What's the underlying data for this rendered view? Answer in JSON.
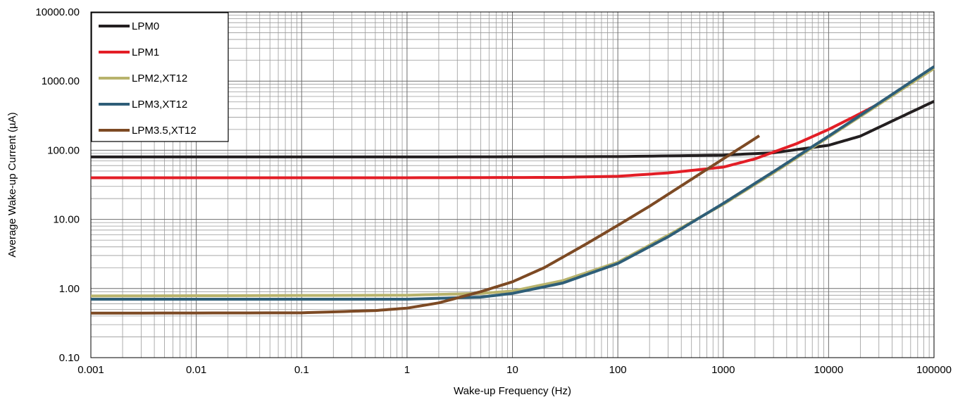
{
  "chart_data": {
    "type": "line",
    "title": "",
    "xlabel": "Wake-up Frequency (Hz)",
    "ylabel": "Average Wake-up Current (µA)",
    "xscale": "log",
    "yscale": "log",
    "xlim": [
      0.001,
      100000
    ],
    "ylim": [
      0.1,
      10000
    ],
    "grid": true,
    "legend_position": "top-left",
    "x_tick_labels": [
      "0.001",
      "0.01",
      "0.1",
      "1",
      "10",
      "100",
      "1000",
      "10000",
      "100000"
    ],
    "y_tick_labels": [
      "0.10",
      "1.00",
      "10.00",
      "100.00",
      "1000.00",
      "10000.00"
    ],
    "series": [
      {
        "name": "LPM0",
        "color": "#231f20",
        "points": [
          [
            0.001,
            80
          ],
          [
            1,
            80
          ],
          [
            100,
            81
          ],
          [
            1000,
            85
          ],
          [
            3000,
            92
          ],
          [
            10000,
            118
          ],
          [
            20000,
            160
          ],
          [
            50000,
            310
          ],
          [
            100000,
            510
          ]
        ]
      },
      {
        "name": "LPM1",
        "color": "#e31e26",
        "points": [
          [
            0.001,
            40
          ],
          [
            1,
            40
          ],
          [
            30,
            40.5
          ],
          [
            100,
            42
          ],
          [
            300,
            47
          ],
          [
            1000,
            57
          ],
          [
            2000,
            75
          ],
          [
            5000,
            125
          ],
          [
            10000,
            200
          ],
          [
            20000,
            340
          ],
          [
            30000,
            470
          ]
        ]
      },
      {
        "name": "LPM2,XT12",
        "color": "#b8b36c",
        "points": [
          [
            0.001,
            0.78
          ],
          [
            1,
            0.8
          ],
          [
            5,
            0.85
          ],
          [
            10,
            0.92
          ],
          [
            30,
            1.3
          ],
          [
            100,
            2.4
          ],
          [
            300,
            5.9
          ],
          [
            1000,
            16.5
          ],
          [
            3000,
            47
          ],
          [
            10000,
            155
          ],
          [
            30000,
            460
          ],
          [
            100000,
            1520
          ]
        ]
      },
      {
        "name": "LPM3,XT12",
        "color": "#2e5e78",
        "points": [
          [
            0.001,
            0.7
          ],
          [
            1,
            0.7
          ],
          [
            5,
            0.75
          ],
          [
            10,
            0.85
          ],
          [
            30,
            1.2
          ],
          [
            100,
            2.3
          ],
          [
            300,
            5.6
          ],
          [
            1000,
            17
          ],
          [
            3000,
            49
          ],
          [
            10000,
            160
          ],
          [
            30000,
            480
          ],
          [
            100000,
            1620
          ]
        ]
      },
      {
        "name": "LPM3.5,XT12",
        "color": "#7d4a24",
        "points": [
          [
            0.001,
            0.44
          ],
          [
            0.1,
            0.445
          ],
          [
            0.5,
            0.48
          ],
          [
            1,
            0.52
          ],
          [
            2,
            0.62
          ],
          [
            5,
            0.9
          ],
          [
            10,
            1.25
          ],
          [
            20,
            2.0
          ],
          [
            50,
            4.4
          ],
          [
            100,
            8.2
          ],
          [
            200,
            15.5
          ],
          [
            500,
            38
          ],
          [
            1000,
            75
          ],
          [
            2200,
            162
          ]
        ]
      }
    ]
  }
}
